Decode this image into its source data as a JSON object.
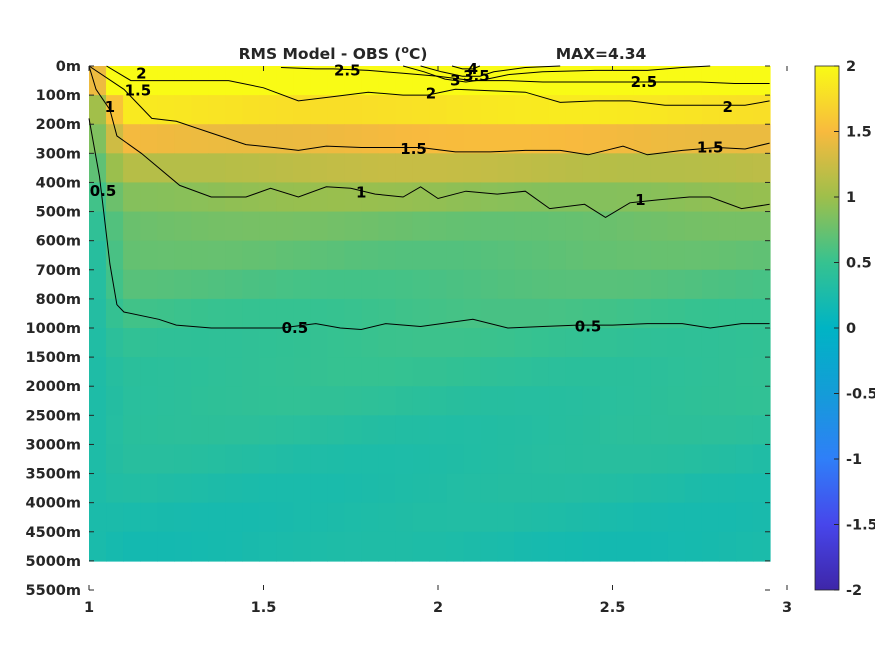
{
  "chart_data": {
    "type": "heatmap",
    "title": "RMS Model - OBS (",
    "title_unit": "C)",
    "title_superscript": "o",
    "annotation": "MAX=4.34",
    "x_ticks": [
      "1",
      "1.5",
      "2",
      "2.5",
      "3"
    ],
    "x_tick_values": [
      1,
      1.5,
      2,
      2.5,
      3
    ],
    "xlim": [
      1,
      3
    ],
    "x_data_extent": [
      1,
      2.95
    ],
    "y_ticks": [
      "0m",
      "100m",
      "200m",
      "300m",
      "400m",
      "500m",
      "600m",
      "700m",
      "800m",
      "1000m",
      "1500m",
      "2000m",
      "2500m",
      "3000m",
      "3500m",
      "4000m",
      "4500m",
      "5000m",
      "5500m"
    ],
    "y_data_levels": 18,
    "colorbar": {
      "ticks": [
        "2",
        "1.5",
        "1",
        "0.5",
        "0",
        "-0.5",
        "-1",
        "-1.5",
        "-2"
      ],
      "range": [
        -2,
        2
      ],
      "colormap": "parula"
    },
    "grid": false,
    "contours": [
      {
        "level": 0.5,
        "label": "0.5",
        "points": [
          [
            1.0,
            1.8
          ],
          [
            1.03,
            3.8
          ],
          [
            1.06,
            6.8
          ],
          [
            1.08,
            8.2
          ],
          [
            1.1,
            8.45
          ],
          [
            1.2,
            8.7
          ],
          [
            1.25,
            8.9
          ],
          [
            1.35,
            9.0
          ],
          [
            1.45,
            9.0
          ],
          [
            1.55,
            9.0
          ],
          [
            1.65,
            8.85
          ],
          [
            1.72,
            9.0
          ],
          [
            1.78,
            9.05
          ],
          [
            1.85,
            8.85
          ],
          [
            1.95,
            8.95
          ],
          [
            2.1,
            8.7
          ],
          [
            2.2,
            9.0
          ],
          [
            2.3,
            8.95
          ],
          [
            2.4,
            8.9
          ],
          [
            2.5,
            8.9
          ],
          [
            2.6,
            8.85
          ],
          [
            2.7,
            8.85
          ],
          [
            2.78,
            9.0
          ],
          [
            2.87,
            8.85
          ],
          [
            2.95,
            8.85
          ]
        ],
        "labels": [
          [
            1.59,
            9.0
          ],
          [
            2.43,
            8.95
          ],
          [
            1.04,
            4.3
          ]
        ]
      },
      {
        "level": 1.0,
        "label": "1",
        "points": [
          [
            1.0,
            0.0
          ],
          [
            1.02,
            0.8
          ],
          [
            1.06,
            1.5
          ],
          [
            1.08,
            2.4
          ],
          [
            1.15,
            3.0
          ],
          [
            1.26,
            4.1
          ],
          [
            1.35,
            4.5
          ],
          [
            1.45,
            4.5
          ],
          [
            1.52,
            4.2
          ],
          [
            1.6,
            4.5
          ],
          [
            1.68,
            4.15
          ],
          [
            1.75,
            4.2
          ],
          [
            1.82,
            4.4
          ],
          [
            1.9,
            4.5
          ],
          [
            1.95,
            4.15
          ],
          [
            2.0,
            4.55
          ],
          [
            2.08,
            4.3
          ],
          [
            2.17,
            4.4
          ],
          [
            2.25,
            4.3
          ],
          [
            2.32,
            4.9
          ],
          [
            2.42,
            4.75
          ],
          [
            2.48,
            5.2
          ],
          [
            2.55,
            4.7
          ],
          [
            2.63,
            4.6
          ],
          [
            2.72,
            4.5
          ],
          [
            2.78,
            4.5
          ],
          [
            2.87,
            4.9
          ],
          [
            2.95,
            4.75
          ]
        ],
        "labels": [
          [
            1.06,
            1.4
          ],
          [
            1.78,
            4.35
          ],
          [
            2.58,
            4.6
          ]
        ]
      },
      {
        "level": 1.5,
        "label": "1.5",
        "points": [
          [
            1.0,
            0.0
          ],
          [
            1.1,
            0.8
          ],
          [
            1.18,
            1.8
          ],
          [
            1.25,
            1.9
          ],
          [
            1.35,
            2.3
          ],
          [
            1.45,
            2.7
          ],
          [
            1.53,
            2.8
          ],
          [
            1.6,
            2.9
          ],
          [
            1.68,
            2.75
          ],
          [
            1.78,
            2.8
          ],
          [
            1.88,
            2.8
          ],
          [
            1.95,
            2.8
          ],
          [
            2.05,
            2.95
          ],
          [
            2.15,
            2.95
          ],
          [
            2.25,
            2.9
          ],
          [
            2.35,
            2.9
          ],
          [
            2.43,
            3.05
          ],
          [
            2.53,
            2.75
          ],
          [
            2.6,
            3.05
          ],
          [
            2.7,
            2.9
          ],
          [
            2.8,
            2.8
          ],
          [
            2.88,
            2.85
          ],
          [
            2.95,
            2.65
          ]
        ],
        "labels": [
          [
            1.14,
            0.85
          ],
          [
            1.93,
            2.85
          ],
          [
            2.78,
            2.8
          ]
        ]
      },
      {
        "level": 2.0,
        "label": "2",
        "points": [
          [
            1.05,
            0.0
          ],
          [
            1.12,
            0.5
          ],
          [
            1.2,
            0.5
          ],
          [
            1.3,
            0.5
          ],
          [
            1.4,
            0.5
          ],
          [
            1.5,
            0.75
          ],
          [
            1.6,
            1.2
          ],
          [
            1.7,
            1.05
          ],
          [
            1.8,
            0.9
          ],
          [
            1.9,
            1.0
          ],
          [
            1.97,
            1.0
          ],
          [
            2.05,
            0.8
          ],
          [
            2.15,
            0.85
          ],
          [
            2.25,
            0.9
          ],
          [
            2.35,
            1.25
          ],
          [
            2.45,
            1.2
          ],
          [
            2.55,
            1.2
          ],
          [
            2.65,
            1.35
          ],
          [
            2.78,
            1.35
          ],
          [
            2.88,
            1.35
          ],
          [
            2.95,
            1.2
          ]
        ],
        "labels": [
          [
            1.15,
            0.25
          ],
          [
            1.98,
            0.95
          ],
          [
            2.83,
            1.4
          ]
        ]
      },
      {
        "level": 2.5,
        "label": "2.5",
        "points": [
          [
            1.55,
            0.05
          ],
          [
            1.65,
            0.1
          ],
          [
            1.7,
            0.1
          ],
          [
            1.8,
            0.15
          ],
          [
            1.9,
            0.25
          ],
          [
            2.0,
            0.35
          ],
          [
            2.1,
            0.5
          ],
          [
            2.2,
            0.5
          ],
          [
            2.3,
            0.55
          ],
          [
            2.45,
            0.55
          ],
          [
            2.55,
            0.55
          ],
          [
            2.65,
            0.55
          ],
          [
            2.75,
            0.55
          ],
          [
            2.85,
            0.6
          ],
          [
            2.95,
            0.6
          ]
        ],
        "labels": [
          [
            1.74,
            0.15
          ],
          [
            2.59,
            0.55
          ]
        ]
      },
      {
        "level": 3.0,
        "label": "3",
        "points": [
          [
            1.9,
            0.0
          ],
          [
            1.96,
            0.2
          ],
          [
            2.02,
            0.45
          ],
          [
            2.08,
            0.55
          ],
          [
            2.14,
            0.45
          ],
          [
            2.2,
            0.3
          ],
          [
            2.3,
            0.2
          ],
          [
            2.45,
            0.15
          ],
          [
            2.6,
            0.15
          ],
          [
            2.7,
            0.05
          ],
          [
            2.78,
            0.0
          ]
        ],
        "labels": [
          [
            2.05,
            0.5
          ]
        ]
      },
      {
        "level": 3.5,
        "label": "3.5",
        "points": [
          [
            1.95,
            0.0
          ],
          [
            2.01,
            0.2
          ],
          [
            2.07,
            0.35
          ],
          [
            2.12,
            0.35
          ],
          [
            2.16,
            0.2
          ],
          [
            2.25,
            0.05
          ],
          [
            2.35,
            0.0
          ]
        ],
        "labels": [
          [
            2.11,
            0.35
          ]
        ]
      },
      {
        "level": 4.0,
        "label": "4",
        "points": [
          [
            2.04,
            0.0
          ],
          [
            2.07,
            0.1
          ],
          [
            2.1,
            0.1
          ],
          [
            2.12,
            0.0
          ]
        ],
        "labels": [
          [
            2.1,
            0.1
          ]
        ]
      }
    ]
  }
}
